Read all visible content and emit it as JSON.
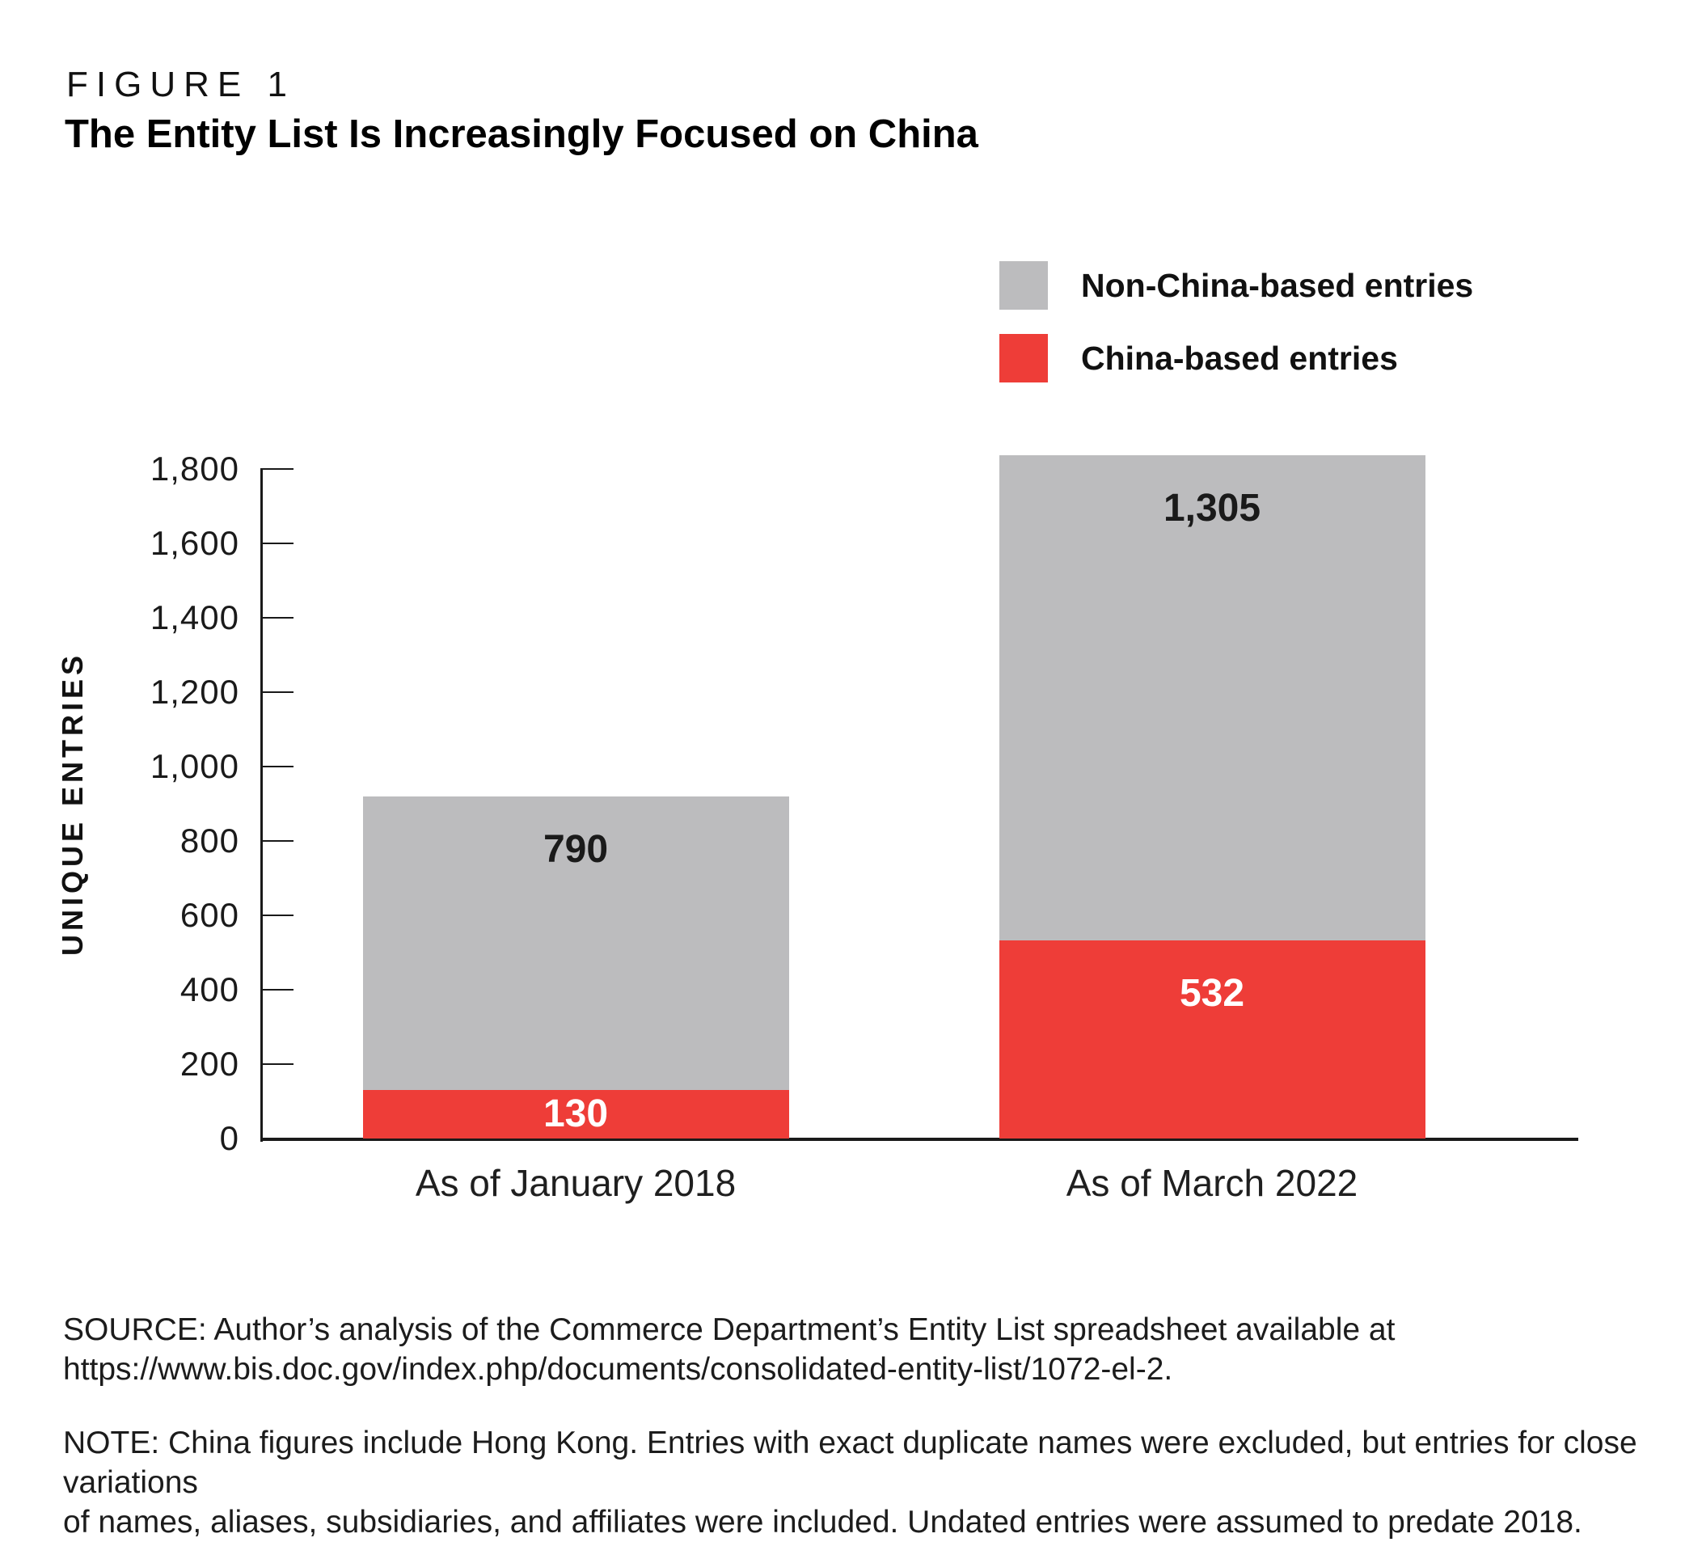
{
  "figure": {
    "kicker": "FIGURE 1",
    "title": "The Entity List Is Increasingly Focused on China"
  },
  "legend": {
    "items": [
      {
        "label": "Non-China-based entries",
        "color": "#bcbcbe"
      },
      {
        "label": "China-based entries",
        "color": "#ee3d38"
      }
    ]
  },
  "chart_data": {
    "type": "bar",
    "stacked": true,
    "title": "The Entity List Is Increasingly Focused on China",
    "categories": [
      "As of January 2018",
      "As of March 2022"
    ],
    "series": [
      {
        "name": "China-based entries",
        "color": "#ee3d38",
        "values": [
          130,
          532
        ],
        "labels": [
          "130",
          "532"
        ],
        "label_color": "#ffffff"
      },
      {
        "name": "Non-China-based entries",
        "color": "#bcbcbe",
        "values": [
          790,
          1305
        ],
        "labels": [
          "790",
          "1,305"
        ],
        "label_color": "#1a1a1a"
      }
    ],
    "totals": [
      920,
      1837
    ],
    "ylabel": "UNIQUE ENTRIES",
    "ylim": [
      0,
      1800
    ],
    "yticks": [
      {
        "value": 1800,
        "label": "1,800"
      },
      {
        "value": 1600,
        "label": "1,600"
      },
      {
        "value": 1400,
        "label": "1,400"
      },
      {
        "value": 1200,
        "label": "1,200"
      },
      {
        "value": 1000,
        "label": "1,000"
      },
      {
        "value": 800,
        "label": "800"
      },
      {
        "value": 600,
        "label": "600"
      },
      {
        "value": 400,
        "label": "400"
      },
      {
        "value": 200,
        "label": "200"
      },
      {
        "value": 0,
        "label": "0"
      }
    ],
    "grid": false,
    "legend_position": "top-right",
    "axis_color": "#1a1a1a"
  },
  "source": {
    "line1": "SOURCE: Author’s analysis of the Commerce Department’s Entity List spreadsheet available at",
    "line2": "https://www.bis.doc.gov/index.php/documents/consolidated-entity-list/1072-el-2."
  },
  "note": {
    "line1": "NOTE: China figures include Hong Kong. Entries with exact duplicate names were excluded, but entries for close variations",
    "line2": "of names, aliases, subsidiaries, and affiliates were included. Undated entries were assumed to predate 2018."
  }
}
